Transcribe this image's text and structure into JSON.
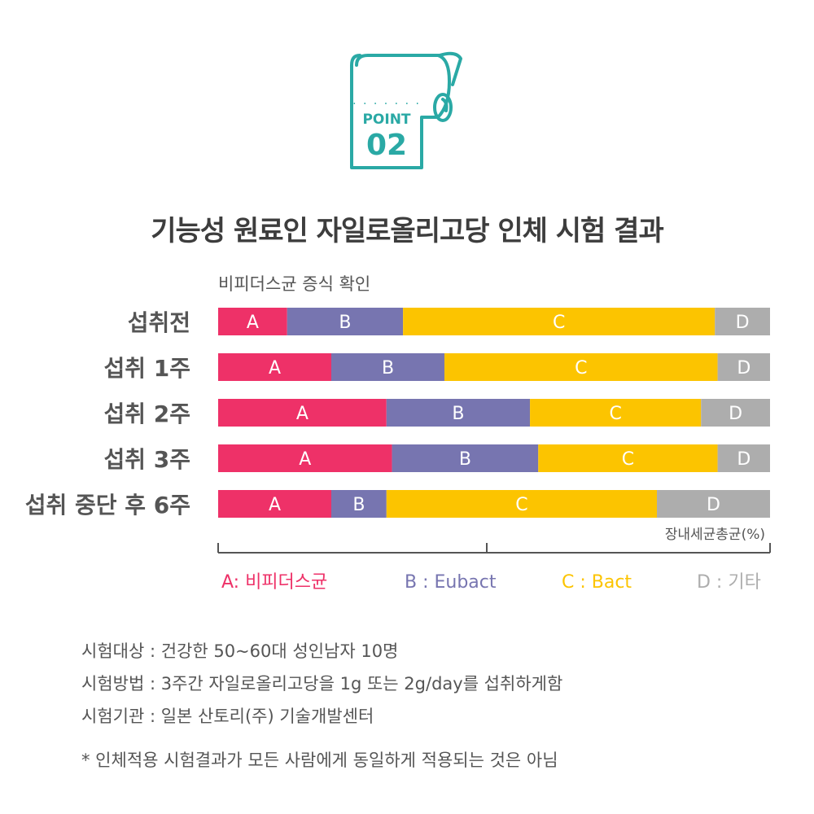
{
  "logo": {
    "word": "POINT",
    "number": "02",
    "color": "#2aa9a5"
  },
  "title": "기능성 원료인 자일로올리고당 인체 시험 결과",
  "chart_data": {
    "type": "bar",
    "stacked": true,
    "horizontal": true,
    "subtitle": "비피더스균 증식 확인",
    "unit_label": "장내세균총균(%)",
    "xlim": [
      0,
      100
    ],
    "categories": [
      "섭취전",
      "섭취 1주",
      "섭취 2주",
      "섭취 3주",
      "섭취 중단 후 6주"
    ],
    "series": [
      {
        "key": "A",
        "color": "#ee3168",
        "values": [
          12.5,
          20.5,
          30.5,
          31.5,
          20.5
        ]
      },
      {
        "key": "B",
        "color": "#7775b0",
        "values": [
          21.0,
          20.5,
          26.0,
          26.5,
          10.0
        ]
      },
      {
        "key": "C",
        "color": "#fcc400",
        "values": [
          56.5,
          49.5,
          31.0,
          32.5,
          49.0
        ]
      },
      {
        "key": "D",
        "color": "#adadad",
        "values": [
          10.0,
          9.5,
          12.5,
          9.5,
          20.5
        ]
      }
    ],
    "legend": [
      {
        "text": "A: 비피더스균",
        "color": "#ee3168"
      },
      {
        "text": "B : Eubact",
        "color": "#7775b0"
      },
      {
        "text": "C : Bact",
        "color": "#fcc400"
      },
      {
        "text": "D : 기타",
        "color": "#adadad"
      }
    ],
    "legend_position": "bottom"
  },
  "notes": [
    "시험대상 : 건강한 50~60대 성인남자 10명",
    "시험방법 : 3주간 자일로올리고당을 1g 또는 2g/day를 섭취하게함",
    "시험기관 : 일본 산토리(주) 기술개발센터"
  ],
  "footnote": "* 인체적용 시험결과가 모든 사람에게 동일하게 적용되는 것은 아님"
}
